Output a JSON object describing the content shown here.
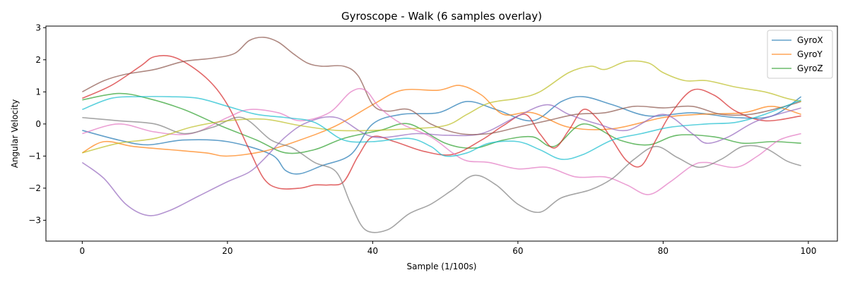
{
  "chart_data": {
    "type": "line",
    "title": "Gyroscope - Walk (6 samples overlay)",
    "xlabel": "Sample (1/100s)",
    "ylabel": "Angular Velocity",
    "xlim": [
      -5,
      104
    ],
    "ylim": [
      -3.65,
      3.05
    ],
    "xticks": [
      0,
      20,
      40,
      60,
      80,
      100
    ],
    "yticks": [
      -3,
      -2,
      -1,
      0,
      1,
      2,
      3
    ],
    "grid": false,
    "legend_position": "top-right",
    "line_opacity": 0.7,
    "legend": [
      {
        "label": "GyroX",
        "color": "#1f77b4"
      },
      {
        "label": "GyroY",
        "color": "#ff7f0e"
      },
      {
        "label": "GyroZ",
        "color": "#2ca02c"
      }
    ],
    "series": [
      {
        "color": "#1f77b4",
        "points": [
          [
            0,
            -0.2
          ],
          [
            5,
            -0.5
          ],
          [
            9,
            -0.65
          ],
          [
            14,
            -0.5
          ],
          [
            20,
            -0.55
          ],
          [
            26,
            -0.95
          ],
          [
            28,
            -1.45
          ],
          [
            30,
            -1.55
          ],
          [
            33,
            -1.3
          ],
          [
            37,
            -0.95
          ],
          [
            40,
            0.0
          ],
          [
            44,
            0.3
          ],
          [
            49,
            0.35
          ],
          [
            53,
            0.7
          ],
          [
            57,
            0.45
          ],
          [
            62,
            0.1
          ],
          [
            66,
            0.7
          ],
          [
            69,
            0.85
          ],
          [
            73,
            0.6
          ],
          [
            78,
            0.25
          ],
          [
            84,
            0.35
          ],
          [
            90,
            0.2
          ],
          [
            95,
            0.25
          ],
          [
            99,
            0.85
          ]
        ]
      },
      {
        "color": "#ff7f0e",
        "points": [
          [
            0,
            -0.9
          ],
          [
            3,
            -0.55
          ],
          [
            7,
            -0.7
          ],
          [
            12,
            -0.8
          ],
          [
            17,
            -0.9
          ],
          [
            20,
            -1.0
          ],
          [
            25,
            -0.85
          ],
          [
            30,
            -0.5
          ],
          [
            35,
            -0.05
          ],
          [
            40,
            0.6
          ],
          [
            44,
            1.05
          ],
          [
            49,
            1.05
          ],
          [
            52,
            1.2
          ],
          [
            55,
            0.9
          ],
          [
            58,
            0.3
          ],
          [
            62,
            0.35
          ],
          [
            67,
            -0.1
          ],
          [
            73,
            -0.15
          ],
          [
            80,
            0.2
          ],
          [
            85,
            0.3
          ],
          [
            91,
            0.35
          ],
          [
            95,
            0.55
          ],
          [
            99,
            0.3
          ]
        ]
      },
      {
        "color": "#2ca02c",
        "points": [
          [
            0,
            0.75
          ],
          [
            5,
            0.95
          ],
          [
            9,
            0.8
          ],
          [
            14,
            0.45
          ],
          [
            19,
            -0.05
          ],
          [
            24,
            -0.5
          ],
          [
            28,
            -0.9
          ],
          [
            32,
            -0.8
          ],
          [
            36,
            -0.45
          ],
          [
            41,
            -0.2
          ],
          [
            45,
            0.0
          ],
          [
            50,
            -0.6
          ],
          [
            54,
            -0.75
          ],
          [
            58,
            -0.5
          ],
          [
            62,
            -0.4
          ],
          [
            65,
            -0.7
          ],
          [
            69,
            0.0
          ],
          [
            74,
            -0.5
          ],
          [
            78,
            -0.65
          ],
          [
            82,
            -0.35
          ],
          [
            87,
            -0.4
          ],
          [
            91,
            -0.6
          ],
          [
            95,
            -0.55
          ],
          [
            99,
            -0.6
          ]
        ]
      },
      {
        "color": "#d62728",
        "points": [
          [
            0,
            0.8
          ],
          [
            4,
            1.2
          ],
          [
            8,
            1.8
          ],
          [
            10,
            2.1
          ],
          [
            13,
            2.05
          ],
          [
            17,
            1.45
          ],
          [
            20,
            0.6
          ],
          [
            23,
            -0.8
          ],
          [
            25,
            -1.7
          ],
          [
            27,
            -2.0
          ],
          [
            30,
            -2.0
          ],
          [
            32,
            -1.9
          ],
          [
            34,
            -1.9
          ],
          [
            36,
            -1.8
          ],
          [
            38,
            -1.0
          ],
          [
            40,
            -0.4
          ],
          [
            43,
            -0.55
          ],
          [
            47,
            -0.85
          ],
          [
            51,
            -0.95
          ],
          [
            55,
            -0.5
          ],
          [
            58,
            -0.05
          ],
          [
            61,
            0.3
          ],
          [
            63,
            -0.3
          ],
          [
            65,
            -0.75
          ],
          [
            67,
            -0.2
          ],
          [
            69,
            0.45
          ],
          [
            71,
            0.15
          ],
          [
            73,
            -0.5
          ],
          [
            75,
            -1.15
          ],
          [
            77,
            -1.3
          ],
          [
            79,
            -0.5
          ],
          [
            81,
            0.3
          ],
          [
            84,
            1.05
          ],
          [
            87,
            0.9
          ],
          [
            90,
            0.4
          ],
          [
            94,
            0.1
          ],
          [
            99,
            0.25
          ]
        ]
      },
      {
        "color": "#9467bd",
        "points": [
          [
            0,
            -1.2
          ],
          [
            3,
            -1.7
          ],
          [
            6,
            -2.5
          ],
          [
            9,
            -2.85
          ],
          [
            12,
            -2.7
          ],
          [
            16,
            -2.25
          ],
          [
            20,
            -1.8
          ],
          [
            23,
            -1.5
          ],
          [
            25,
            -1.1
          ],
          [
            28,
            -0.4
          ],
          [
            31,
            0.05
          ],
          [
            35,
            0.2
          ],
          [
            40,
            -0.4
          ],
          [
            46,
            -0.3
          ],
          [
            50,
            -0.35
          ],
          [
            55,
            -0.3
          ],
          [
            60,
            0.25
          ],
          [
            64,
            0.6
          ],
          [
            67,
            0.3
          ],
          [
            71,
            0.0
          ],
          [
            75,
            -0.2
          ],
          [
            80,
            0.3
          ],
          [
            84,
            -0.3
          ],
          [
            86,
            -0.6
          ],
          [
            89,
            -0.4
          ],
          [
            93,
            0.1
          ],
          [
            99,
            0.5
          ]
        ]
      },
      {
        "color": "#8c564b",
        "points": [
          [
            0,
            1.0
          ],
          [
            3,
            1.35
          ],
          [
            6,
            1.55
          ],
          [
            10,
            1.7
          ],
          [
            14,
            1.95
          ],
          [
            18,
            2.05
          ],
          [
            21,
            2.2
          ],
          [
            23,
            2.6
          ],
          [
            25,
            2.7
          ],
          [
            27,
            2.55
          ],
          [
            29,
            2.2
          ],
          [
            31,
            1.9
          ],
          [
            33,
            1.8
          ],
          [
            36,
            1.8
          ],
          [
            38,
            1.5
          ],
          [
            40,
            0.6
          ],
          [
            42,
            0.4
          ],
          [
            45,
            0.45
          ],
          [
            48,
            0.0
          ],
          [
            52,
            -0.3
          ],
          [
            56,
            -0.3
          ],
          [
            60,
            -0.1
          ],
          [
            64,
            0.1
          ],
          [
            68,
            0.3
          ],
          [
            72,
            0.35
          ],
          [
            76,
            0.55
          ],
          [
            80,
            0.5
          ],
          [
            84,
            0.55
          ],
          [
            88,
            0.3
          ],
          [
            92,
            0.3
          ],
          [
            96,
            0.5
          ],
          [
            99,
            0.7
          ]
        ]
      },
      {
        "color": "#e377c2",
        "points": [
          [
            0,
            -0.3
          ],
          [
            5,
            0.0
          ],
          [
            10,
            -0.25
          ],
          [
            15,
            -0.3
          ],
          [
            20,
            0.2
          ],
          [
            23,
            0.45
          ],
          [
            27,
            0.35
          ],
          [
            30,
            0.1
          ],
          [
            34,
            0.35
          ],
          [
            37,
            1.0
          ],
          [
            39,
            1.05
          ],
          [
            41,
            0.5
          ],
          [
            44,
            0.0
          ],
          [
            48,
            -0.4
          ],
          [
            51,
            -0.9
          ],
          [
            53,
            -1.15
          ],
          [
            56,
            -1.2
          ],
          [
            60,
            -1.4
          ],
          [
            64,
            -1.35
          ],
          [
            68,
            -1.65
          ],
          [
            72,
            -1.65
          ],
          [
            75,
            -1.9
          ],
          [
            78,
            -2.2
          ],
          [
            81,
            -1.8
          ],
          [
            84,
            -1.3
          ],
          [
            86,
            -1.2
          ],
          [
            90,
            -1.35
          ],
          [
            93,
            -1.0
          ],
          [
            96,
            -0.5
          ],
          [
            99,
            -0.3
          ]
        ]
      },
      {
        "color": "#7f7f7f",
        "points": [
          [
            0,
            0.2
          ],
          [
            5,
            0.1
          ],
          [
            10,
            0.0
          ],
          [
            14,
            -0.3
          ],
          [
            18,
            -0.1
          ],
          [
            22,
            0.2
          ],
          [
            26,
            -0.5
          ],
          [
            29,
            -0.75
          ],
          [
            32,
            -1.2
          ],
          [
            35,
            -1.5
          ],
          [
            37,
            -2.5
          ],
          [
            39,
            -3.3
          ],
          [
            42,
            -3.3
          ],
          [
            45,
            -2.8
          ],
          [
            48,
            -2.5
          ],
          [
            51,
            -2.05
          ],
          [
            54,
            -1.6
          ],
          [
            57,
            -1.9
          ],
          [
            60,
            -2.5
          ],
          [
            63,
            -2.75
          ],
          [
            66,
            -2.3
          ],
          [
            70,
            -2.05
          ],
          [
            73,
            -1.7
          ],
          [
            76,
            -1.1
          ],
          [
            79,
            -0.7
          ],
          [
            82,
            -1.05
          ],
          [
            85,
            -1.35
          ],
          [
            88,
            -1.1
          ],
          [
            91,
            -0.7
          ],
          [
            94,
            -0.75
          ],
          [
            97,
            -1.15
          ],
          [
            99,
            -1.3
          ]
        ]
      },
      {
        "color": "#bcbd22",
        "points": [
          [
            0,
            -0.9
          ],
          [
            5,
            -0.6
          ],
          [
            10,
            -0.45
          ],
          [
            15,
            -0.1
          ],
          [
            20,
            0.1
          ],
          [
            25,
            0.15
          ],
          [
            30,
            -0.05
          ],
          [
            35,
            -0.2
          ],
          [
            40,
            -0.2
          ],
          [
            45,
            -0.15
          ],
          [
            50,
            -0.05
          ],
          [
            53,
            0.3
          ],
          [
            56,
            0.65
          ],
          [
            60,
            0.8
          ],
          [
            63,
            1.0
          ],
          [
            67,
            1.6
          ],
          [
            70,
            1.8
          ],
          [
            72,
            1.7
          ],
          [
            75,
            1.95
          ],
          [
            78,
            1.9
          ],
          [
            80,
            1.6
          ],
          [
            83,
            1.35
          ],
          [
            86,
            1.35
          ],
          [
            90,
            1.15
          ],
          [
            94,
            1.0
          ],
          [
            97,
            0.8
          ],
          [
            99,
            0.7
          ]
        ]
      },
      {
        "color": "#17becf",
        "points": [
          [
            0,
            0.45
          ],
          [
            4,
            0.8
          ],
          [
            8,
            0.85
          ],
          [
            12,
            0.85
          ],
          [
            16,
            0.8
          ],
          [
            20,
            0.55
          ],
          [
            24,
            0.3
          ],
          [
            28,
            0.2
          ],
          [
            32,
            0.05
          ],
          [
            36,
            -0.5
          ],
          [
            40,
            -0.55
          ],
          [
            45,
            -0.45
          ],
          [
            48,
            -0.7
          ],
          [
            50,
            -1.0
          ],
          [
            53,
            -0.9
          ],
          [
            56,
            -0.6
          ],
          [
            60,
            -0.55
          ],
          [
            63,
            -0.8
          ],
          [
            66,
            -1.1
          ],
          [
            69,
            -0.95
          ],
          [
            73,
            -0.5
          ],
          [
            77,
            -0.3
          ],
          [
            81,
            -0.1
          ],
          [
            86,
            0.0
          ],
          [
            90,
            0.05
          ],
          [
            94,
            0.3
          ],
          [
            99,
            0.75
          ]
        ]
      }
    ]
  }
}
